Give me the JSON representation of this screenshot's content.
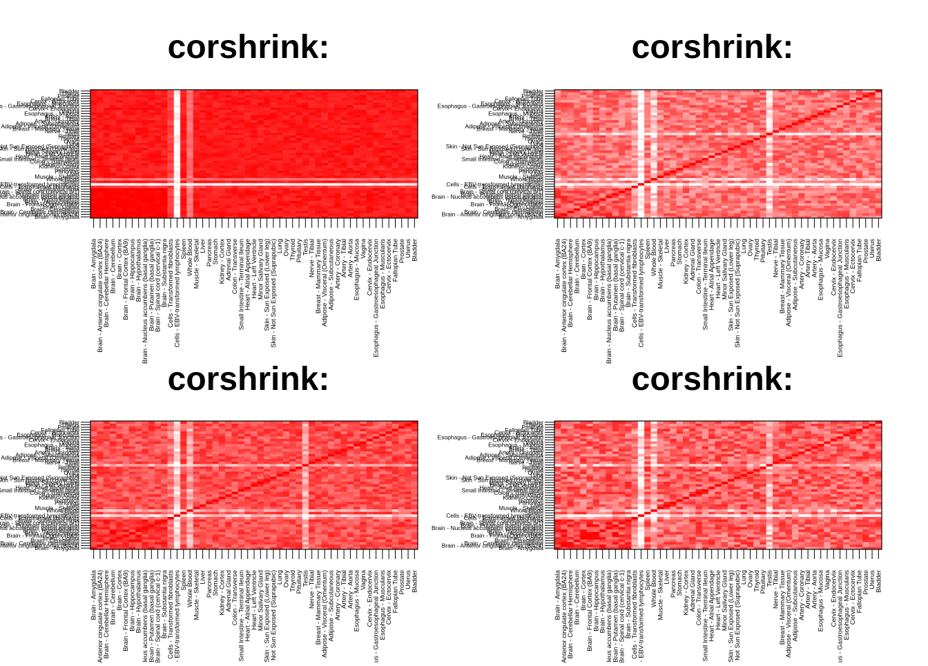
{
  "chart_data": {
    "type": "heatmap",
    "tissues": [
      "Brain - Amygdala",
      "Brain - Anterior cingulate cortex (BA24)",
      "Brain - Cerebellar Hemisphere",
      "Brain - Cerebellum",
      "Brain - Cortex",
      "Brain - Frontal Cortex (BA9)",
      "Brain - Hippocampus",
      "Brain - Hypothalamus",
      "Brain - Nucleus accumbens (basal ganglia)",
      "Brain - Putamen (basal ganglia)",
      "Brain - Spinal cord (cervical c-1)",
      "Brain - Substantia nigra",
      "Cells - Transformed fibroblasts",
      "Cells - EBV-transformed lymphocytes",
      "Spleen",
      "Whole Blood",
      "Muscle - Skeletal",
      "Liver",
      "Pancreas",
      "Stomach",
      "Kidney - Cortex",
      "Adrenal Gland",
      "Colon - Transverse",
      "Small Intestine - Terminal Ileum",
      "Heart - Atrial Appendage",
      "Heart - Left Ventricle",
      "Minor Salivary Gland",
      "Skin - Sun Exposed (Lower leg)",
      "Skin - Not Sun Exposed (Suprapubic)",
      "Lung",
      "Ovary",
      "Thyroid",
      "Pituitary",
      "Testis",
      "Nerve - Tibial",
      "Breast - Mammary Tissue",
      "Adipose - Visceral (Omentum)",
      "Adipose - Subcutaneous",
      "Artery - Coronary",
      "Artery - Tibial",
      "Artery - Aorta",
      "Esophagus - Mucosa",
      "Vagina",
      "Cervix - Endocervix",
      "Esophagus - Gastroesophageal Junction",
      "Esophagus - Muscularis",
      "Cervix - Ectocervix",
      "Fallopian Tube",
      "Prostate",
      "Uterus",
      "Bladder"
    ],
    "panels": [
      {
        "title": "corshrink:",
        "diag": false,
        "base": 0.9,
        "spread": 0.08
      },
      {
        "title": "corshrink:",
        "diag": true,
        "base": 0.55,
        "spread": 0.22
      },
      {
        "title": "corshrink:",
        "diag": true,
        "base": 0.7,
        "spread": 0.18
      },
      {
        "title": "corshrink:",
        "diag": true,
        "base": 0.62,
        "spread": 0.25
      }
    ],
    "color_scale": {
      "low": "#ffffff",
      "high": "#ff0000"
    },
    "note_value_range": [
      0,
      1
    ]
  }
}
